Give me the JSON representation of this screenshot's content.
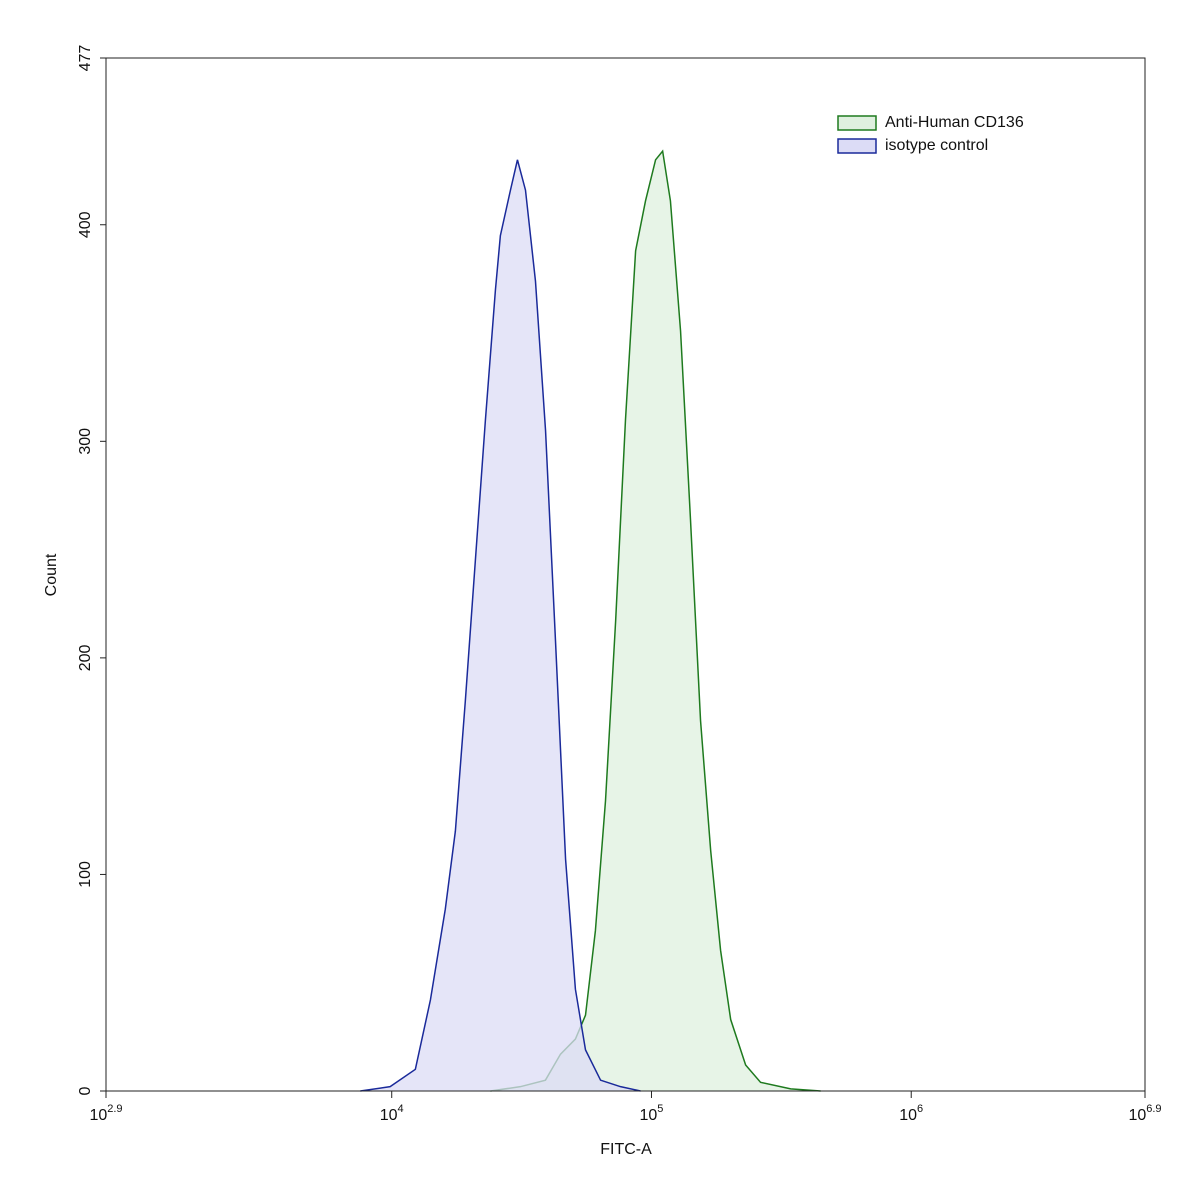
{
  "chart_data": {
    "type": "area",
    "xlabel": "FITC-A",
    "ylabel": "Count",
    "xlog": true,
    "xlim": [
      794.33,
      7943282
    ],
    "xticks": [
      {
        "value": 794.33,
        "label": "10",
        "exponent": "2.9"
      },
      {
        "value": 10000,
        "label": "10",
        "exponent": "4"
      },
      {
        "value": 100000,
        "label": "10",
        "exponent": "5"
      },
      {
        "value": 1000000,
        "label": "10",
        "exponent": "6"
      },
      {
        "value": 7943282,
        "label": "10",
        "exponent": "6.9"
      }
    ],
    "ylim": [
      0,
      477
    ],
    "yticks": [
      0,
      100,
      200,
      300,
      400,
      477
    ],
    "legend": "top-right",
    "series": [
      {
        "name": "Anti-Human CD136",
        "color": "#1e7a1e",
        "fill": "#dff0df",
        "x": [
          23990,
          31280,
          39060,
          44640,
          50950,
          55720,
          60830,
          66530,
          72780,
          79430,
          86890,
          94840,
          103700,
          110400,
          118300,
          129400,
          141300,
          154500,
          169000,
          184500,
          201800,
          230400,
          263000,
          343600,
          448100
        ],
        "values": [
          0,
          2,
          5,
          17,
          24,
          35,
          74,
          134,
          217,
          310,
          388,
          411,
          430,
          434,
          411,
          351,
          264,
          171,
          111,
          65,
          33,
          12,
          4,
          1,
          0
        ]
      },
      {
        "name": "isotype control",
        "color": "#1a2a9a",
        "fill": "#dcdcf6",
        "x": [
          7570,
          9860,
          12330,
          14090,
          16080,
          17580,
          19200,
          20990,
          22950,
          25080,
          26200,
          28650,
          30480,
          32730,
          35760,
          39100,
          42700,
          46700,
          50950,
          55720,
          63680,
          76000,
          90780
        ],
        "values": [
          0,
          2,
          10,
          42,
          84,
          120,
          180,
          245,
          310,
          370,
          395,
          416,
          430,
          416,
          374,
          305,
          208,
          107,
          47,
          19,
          5,
          2,
          0
        ]
      }
    ]
  }
}
